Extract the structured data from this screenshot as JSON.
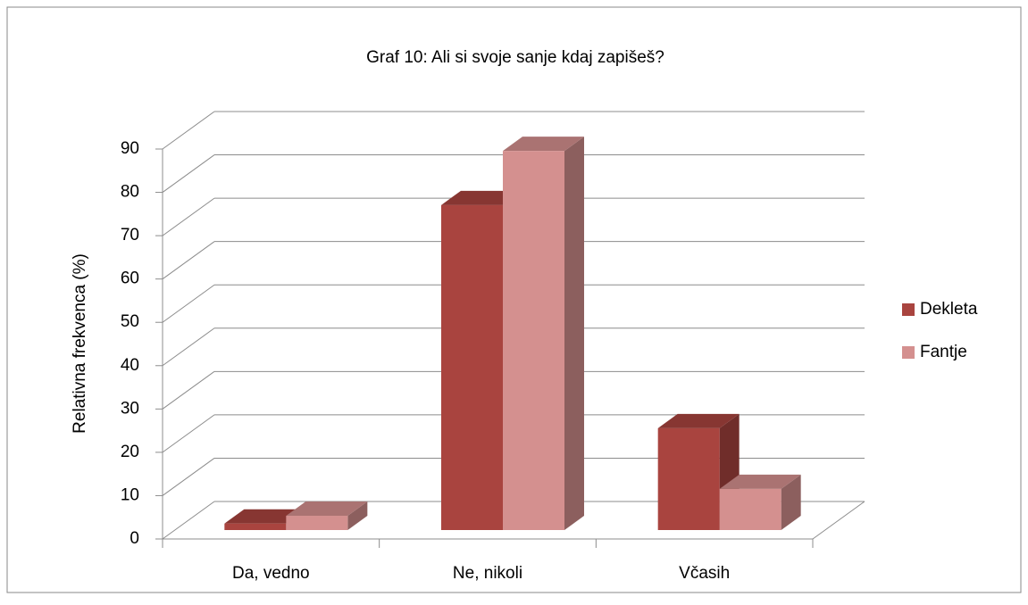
{
  "chart_data": {
    "type": "bar3d",
    "title": "Graf 10: Ali si svoje sanje kdaj zapišeš?",
    "y_label": "Relativna frekvenca (%)",
    "categories": [
      "Da, vedno",
      "Ne, nikoli",
      "Včasih"
    ],
    "series": [
      {
        "name": "Dekleta",
        "color": "#a9443f",
        "values": [
          1.5,
          75,
          23.5
        ]
      },
      {
        "name": "Fantje",
        "color": "#d4908f",
        "values": [
          3.3,
          87.5,
          9.5
        ]
      }
    ],
    "ylim": [
      0,
      90
    ],
    "yticks": [
      0,
      10,
      20,
      30,
      40,
      50,
      60,
      70,
      80,
      90
    ],
    "grid": true,
    "legend": "right"
  }
}
